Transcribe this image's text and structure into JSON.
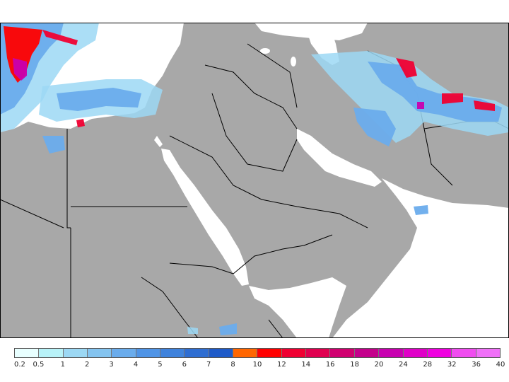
{
  "map": {
    "colors": {
      "land": "#a8a8a8",
      "sea": "#ffffff",
      "border": "#000000"
    }
  },
  "legend": {
    "labels": [
      "0.2",
      "0.5",
      "1",
      "2",
      "3",
      "4",
      "5",
      "6",
      "7",
      "8",
      "10",
      "12",
      "14",
      "16",
      "18",
      "20",
      "24",
      "28",
      "32",
      "36",
      "40"
    ],
    "colors": [
      "#e8ffff",
      "#b8f2f8",
      "#9cd8f4",
      "#84c4f0",
      "#6aacec",
      "#4f94e6",
      "#3f82dc",
      "#2f6ed2",
      "#1e5ac8",
      "#ff6600",
      "#ff0000",
      "#f00032",
      "#e00050",
      "#d00070",
      "#c4008c",
      "#c800b0",
      "#e000c8",
      "#f000e0",
      "#f04cf0",
      "#f070f8"
    ]
  }
}
